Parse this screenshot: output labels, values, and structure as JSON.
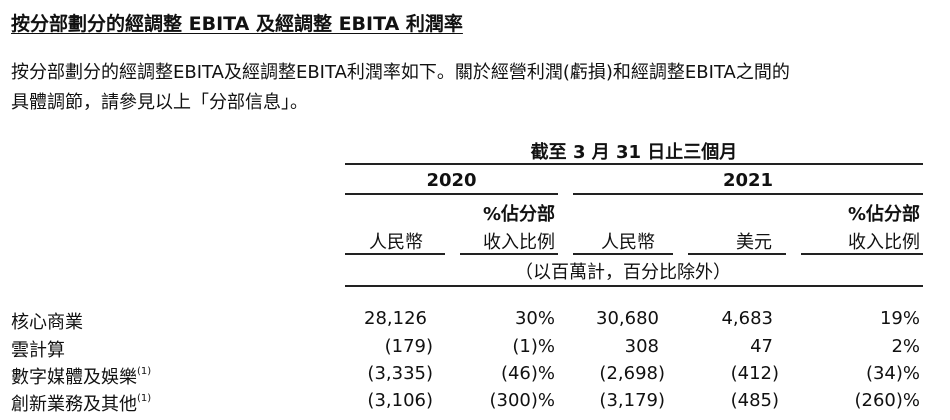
{
  "title": "按分部劃分的經調整 EBITA 及經調整 EBITA 利潤率",
  "intro": {
    "line1": "按分部劃分的經調整EBITA及經調整EBITA利潤率如下。關於經營利潤(虧損)和經調整EBITA之間的",
    "line2": "具體調節，請參見以上「分部信息」。"
  },
  "table": {
    "period": "截至 3 月 31 日止三個月",
    "years": [
      "2020",
      "2021"
    ],
    "columns": {
      "c2020_rmb": "人民幣",
      "c2020_pct_l1": "%佔分部",
      "c2020_pct_l2": "收入比例",
      "c2021_rmb": "人民幣",
      "c2021_usd": "美元",
      "c2021_pct_l1": "%佔分部",
      "c2021_pct_l2": "收入比例"
    },
    "units": "（以百萬計，百分比除外）",
    "rows": [
      {
        "label": "核心商業",
        "sup": "",
        "v2020_rmb": "28,126",
        "v2020_pct": "30%",
        "v2021_rmb": "30,680",
        "v2021_usd": "4,683",
        "v2021_pct": "19%"
      },
      {
        "label": "雲計算",
        "sup": "",
        "v2020_rmb": "(179)",
        "v2020_pct": "(1)%",
        "v2021_rmb": "308",
        "v2021_usd": "47",
        "v2021_pct": "2%"
      },
      {
        "label": "數字媒體及娛樂",
        "sup": "(1)",
        "v2020_rmb": "(3,335)",
        "v2020_pct": "(46)%",
        "v2021_rmb": "(2,698)",
        "v2021_usd": "(412)",
        "v2021_pct": "(34)%"
      },
      {
        "label": "創新業務及其他",
        "sup": "(1)",
        "v2020_rmb": "(3,106)",
        "v2020_pct": "(300)%",
        "v2021_rmb": "(3,179)",
        "v2021_usd": "(485)",
        "v2021_pct": "(260)%"
      }
    ]
  }
}
